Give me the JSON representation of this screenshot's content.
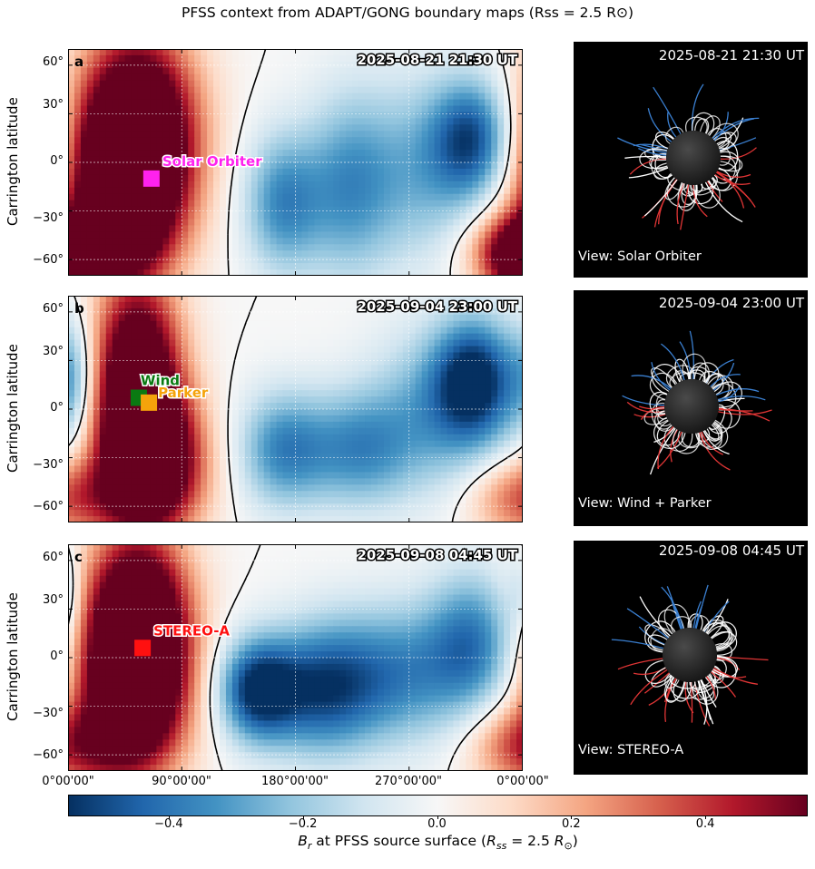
{
  "figure": {
    "title": "PFSS context from ADAPT/GONG boundary maps  (Rss = 2.5 R⊙)"
  },
  "chart_data": {
    "type": "heatmap",
    "quantity": "Br at PFSS source surface",
    "xlabel": "",
    "ylabel": "Carrington latitude",
    "x_ticks": [
      "0°00'00\"",
      "90°00'00\"",
      "180°00'00\"",
      "270°00'00\"",
      "0°00'00\""
    ],
    "x_tick_values": [
      0,
      90,
      180,
      270,
      360
    ],
    "y_ticks": [
      "60°",
      "30°",
      "0°",
      "−30°",
      "−60°"
    ],
    "y_tick_values": [
      60,
      30,
      0,
      -30,
      -60
    ],
    "xlim": [
      0,
      360
    ],
    "ylim": [
      -70,
      70
    ],
    "grid": true,
    "colormap": "RdBu_r",
    "colorbar": {
      "label_main": "B",
      "label_sub": "r",
      "label_rest": " at PFSS source surface  (",
      "label_R": "R",
      "label_Rsub": "ss",
      "label_eq": " = 2.5 ",
      "label_R2": "R",
      "label_R2sub": "⊙",
      "label_close": ")",
      "range": [
        -0.55,
        0.55
      ],
      "ticks": [
        -0.4,
        -0.2,
        0.0,
        0.2,
        0.4
      ],
      "tick_labels": [
        "−0.4",
        "−0.2",
        "0.0",
        "0.2",
        "0.4"
      ]
    },
    "panels": [
      {
        "letter": "a",
        "timestamp": "2025-08-21 21:30 UT",
        "markers": [
          {
            "name": "Solar Orbiter",
            "lon": 66,
            "lat": -10,
            "color": "#ff22ee"
          }
        ],
        "view": {
          "timestamp": "2025-08-21 21:30 UT",
          "label": "View: Solar Orbiter"
        }
      },
      {
        "letter": "b",
        "timestamp": "2025-09-04 23:00 UT",
        "markers": [
          {
            "name": "Wind",
            "lon": 56,
            "lat": 7,
            "color": "#0a7a12"
          },
          {
            "name": "Parker",
            "lon": 64,
            "lat": 4,
            "color": "#f5a30b"
          }
        ],
        "view": {
          "timestamp": "2025-09-04 23:00 UT",
          "label": "View: Wind + Parker"
        }
      },
      {
        "letter": "c",
        "timestamp": "2025-09-08 04:45 UT",
        "markers": [
          {
            "name": "STEREO-A",
            "lon": 59,
            "lat": 6,
            "color": "#ff1010"
          }
        ],
        "view": {
          "timestamp": "2025-09-08 04:45 UT",
          "label": "View: STEREO-A"
        }
      }
    ]
  }
}
